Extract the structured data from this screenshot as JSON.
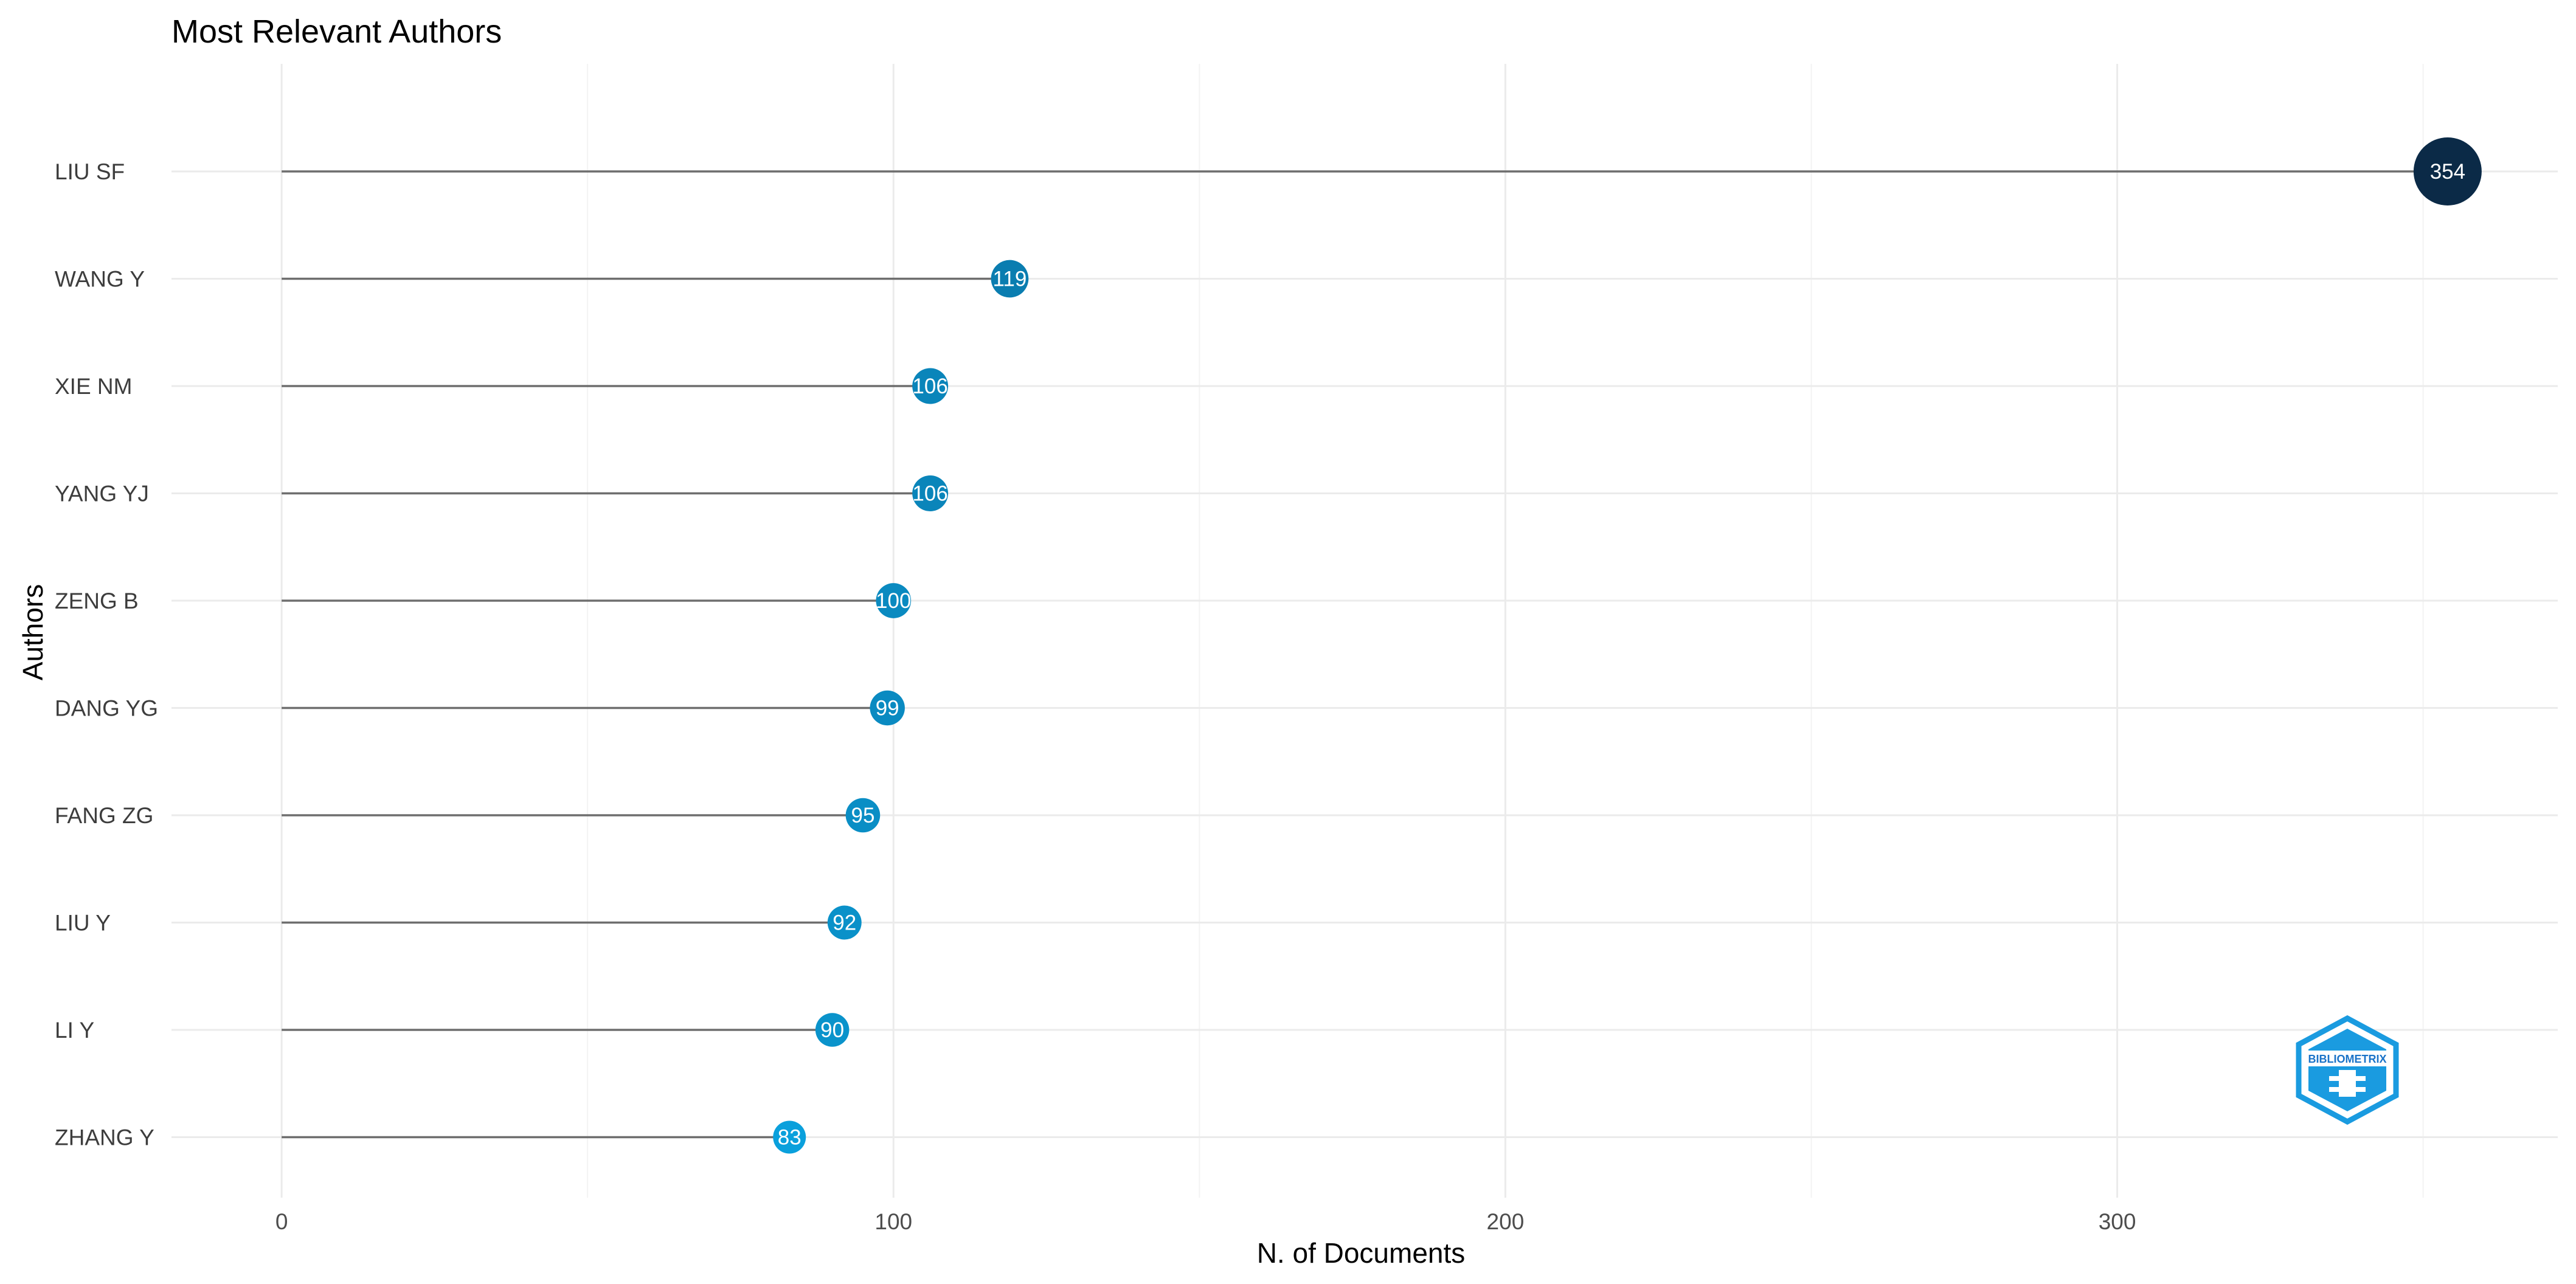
{
  "chart_data": {
    "type": "lollipop",
    "title": "Most Relevant Authors",
    "xlabel": "N. of Documents",
    "ylabel": "Authors",
    "xlim": [
      -18,
      372
    ],
    "x_ticks": [
      0,
      100,
      200,
      300
    ],
    "x_tick_labels": [
      "0",
      "100",
      "200",
      "300"
    ],
    "grid": true,
    "categories": [
      "LIU SF",
      "WANG Y",
      "XIE NM",
      "YANG YJ",
      "ZENG B",
      "DANG YG",
      "FANG ZG",
      "LIU Y",
      "LI Y",
      "ZHANG Y"
    ],
    "values": [
      354,
      119,
      106,
      106,
      100,
      99,
      95,
      92,
      90,
      83
    ],
    "value_labels": [
      "354",
      "119",
      "106",
      "106",
      "100",
      "99",
      "95",
      "92",
      "90",
      "83"
    ],
    "colors": {
      "low": "#0aa0dc",
      "high": "#0b2a47",
      "stem": "#6e6e6e"
    }
  },
  "logo": {
    "text": "BIBLIOMETRIX",
    "color": "#1a9be0"
  }
}
